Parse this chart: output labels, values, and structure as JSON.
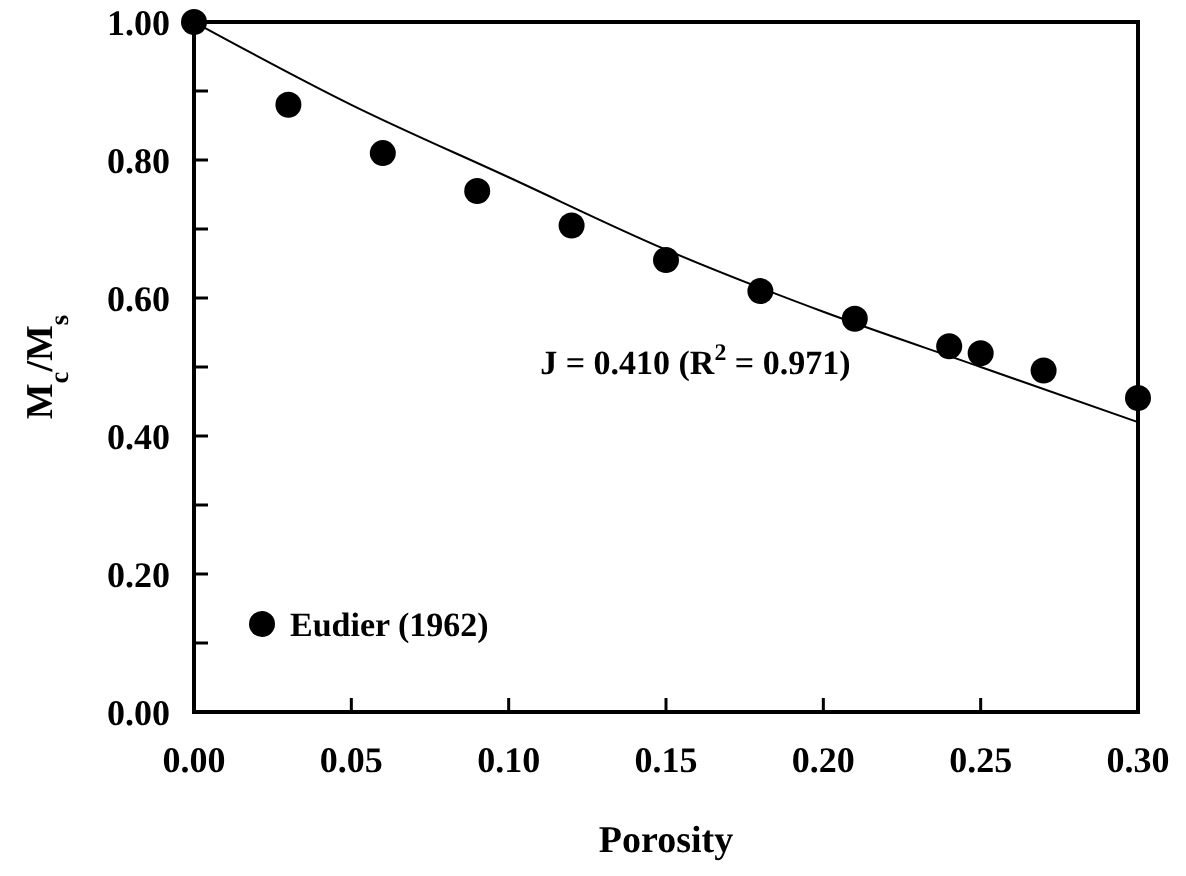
{
  "chart_data": {
    "type": "scatter",
    "xlabel": "Porosity",
    "ylabel": "M$_{c}$/M$_{s}$",
    "xlim": [
      0,
      0.3
    ],
    "xticks": [
      {
        "value": 0,
        "label": "0.00"
      },
      {
        "value": 0.05,
        "label": "0.05"
      },
      {
        "value": 0.1,
        "label": "0.10"
      },
      {
        "value": 0.15,
        "label": "0.15"
      },
      {
        "value": 0.2,
        "label": "0.20"
      },
      {
        "value": 0.25,
        "label": "0.25"
      },
      {
        "value": 0.3,
        "label": "0.30"
      }
    ],
    "ylim": [
      0,
      1
    ],
    "yticks": [
      {
        "value": 0,
        "label": "0.00"
      },
      {
        "value": 0.1,
        "label": null
      },
      {
        "value": 0.2,
        "label": "0.20"
      },
      {
        "value": 0.3,
        "label": null
      },
      {
        "value": 0.4,
        "label": "0.40"
      },
      {
        "value": 0.5,
        "label": null
      },
      {
        "value": 0.6,
        "label": "0.60"
      },
      {
        "value": 0.7,
        "label": null
      },
      {
        "value": 0.8,
        "label": "0.80"
      },
      {
        "value": 0.9,
        "label": null
      },
      {
        "value": 1,
        "label": "1.00"
      }
    ],
    "series": [
      {
        "name": "Eudier (1962)",
        "color": "#000000",
        "marker": "circle",
        "x": [
          0,
          0.03,
          0.06,
          0.09,
          0.12,
          0.15,
          0.18,
          0.21,
          0.24,
          0.25,
          0.27,
          0.3
        ],
        "values": [
          1,
          0.88,
          0.81,
          0.755,
          0.705,
          0.655,
          0.61,
          0.57,
          0.53,
          0.52,
          0.495,
          0.455
        ]
      },
      {
        "type": "line",
        "color": "#000000",
        "line_style": "solid",
        "x": [
          0,
          0.05,
          0.1,
          0.15,
          0.2,
          0.25,
          0.3
        ],
        "values": [
          1,
          0.88,
          0.775,
          0.67,
          0.58,
          0.5,
          0.42
        ]
      }
    ],
    "annotations": [
      "J = 0.410 (R$^{2}$ = 0.971)"
    ],
    "legend": "bottom left",
    "grid": false
  }
}
